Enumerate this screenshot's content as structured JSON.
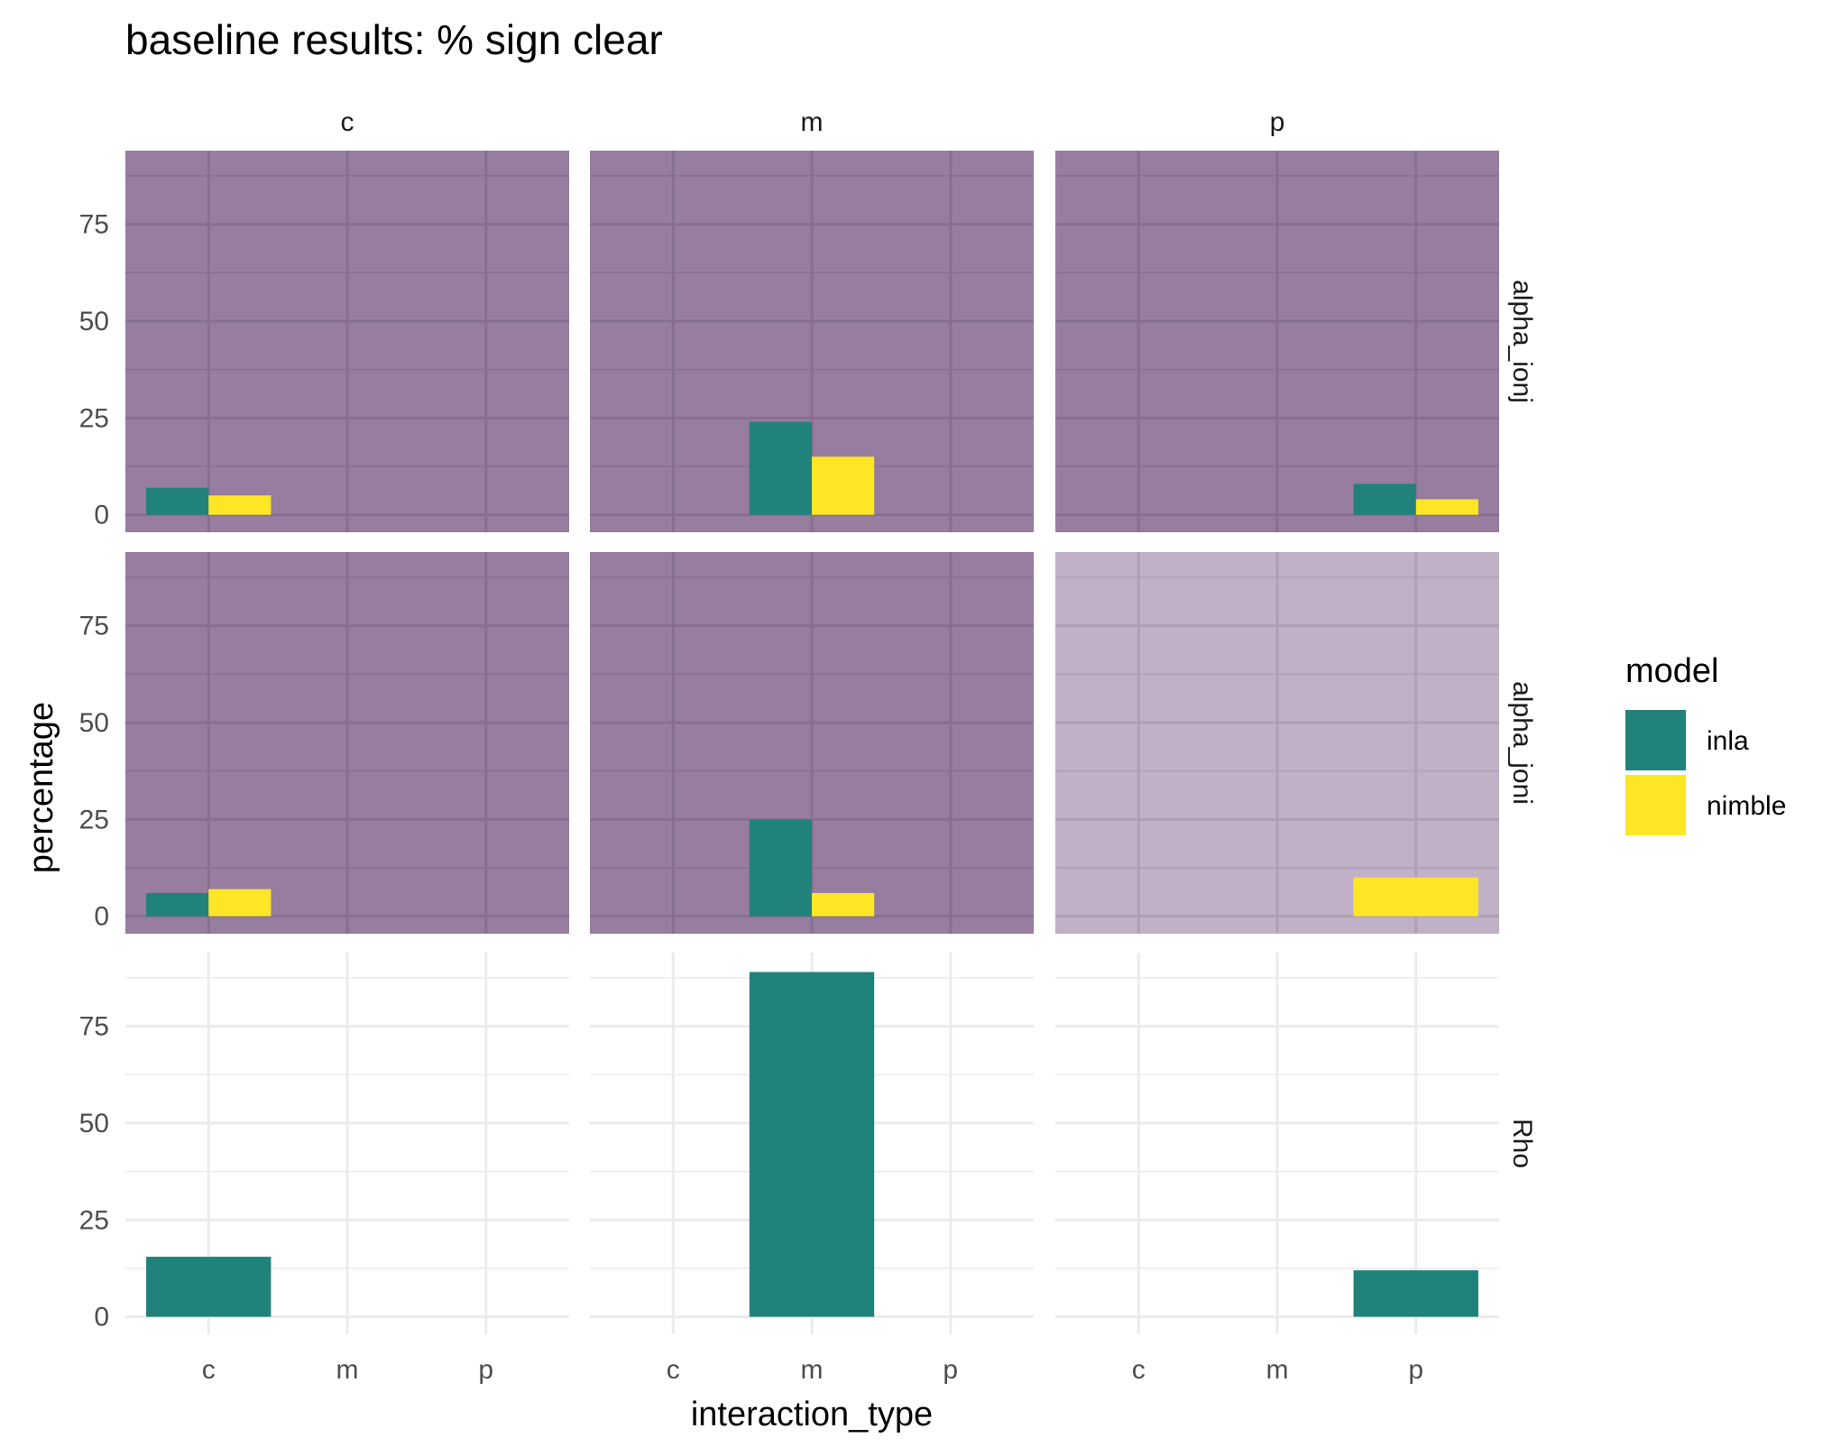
{
  "chart_data": {
    "type": "bar",
    "title": "baseline results: % sign clear",
    "xlabel": "interaction_type",
    "ylabel": "percentage",
    "categories": [
      "c",
      "m",
      "p"
    ],
    "yticks": [
      0,
      25,
      50,
      75
    ],
    "ylim": [
      -4.5,
      94
    ],
    "facet_columns": [
      "c",
      "m",
      "p"
    ],
    "facet_rows": [
      "alpha_ionj",
      "alpha_joni",
      "Rho"
    ],
    "legend": {
      "title": "model",
      "placement": "right",
      "entries": [
        {
          "name": "inla",
          "color": "#21827B"
        },
        {
          "name": "nimble",
          "color": "#FDE625"
        }
      ]
    },
    "highlight_colors": {
      "dark": "#977DA0",
      "light": "#C1B1C6",
      "none": "#FFFFFF"
    },
    "panels": [
      {
        "row": "alpha_ionj",
        "col": "c",
        "highlight": "dark",
        "bars": [
          {
            "category": "c",
            "model": "inla",
            "value": 7
          },
          {
            "category": "c",
            "model": "nimble",
            "value": 5
          }
        ]
      },
      {
        "row": "alpha_ionj",
        "col": "m",
        "highlight": "dark",
        "bars": [
          {
            "category": "m",
            "model": "inla",
            "value": 24
          },
          {
            "category": "m",
            "model": "nimble",
            "value": 15
          }
        ]
      },
      {
        "row": "alpha_ionj",
        "col": "p",
        "highlight": "dark",
        "bars": [
          {
            "category": "p",
            "model": "inla",
            "value": 8
          },
          {
            "category": "p",
            "model": "nimble",
            "value": 4
          }
        ]
      },
      {
        "row": "alpha_joni",
        "col": "c",
        "highlight": "dark",
        "bars": [
          {
            "category": "c",
            "model": "inla",
            "value": 6
          },
          {
            "category": "c",
            "model": "nimble",
            "value": 7
          }
        ]
      },
      {
        "row": "alpha_joni",
        "col": "m",
        "highlight": "dark",
        "bars": [
          {
            "category": "m",
            "model": "inla",
            "value": 25
          },
          {
            "category": "m",
            "model": "nimble",
            "value": 6
          }
        ]
      },
      {
        "row": "alpha_joni",
        "col": "p",
        "highlight": "light",
        "bars": [
          {
            "category": "p",
            "model": "nimble",
            "value": 10,
            "full_width": true
          }
        ]
      },
      {
        "row": "Rho",
        "col": "c",
        "highlight": "none",
        "bars": [
          {
            "category": "c",
            "model": "inla",
            "value": 15.5,
            "full_width": true
          }
        ]
      },
      {
        "row": "Rho",
        "col": "m",
        "highlight": "none",
        "bars": [
          {
            "category": "m",
            "model": "inla",
            "value": 89,
            "full_width": true
          }
        ]
      },
      {
        "row": "Rho",
        "col": "p",
        "highlight": "none",
        "bars": [
          {
            "category": "p",
            "model": "inla",
            "value": 12,
            "full_width": true
          }
        ]
      }
    ]
  }
}
